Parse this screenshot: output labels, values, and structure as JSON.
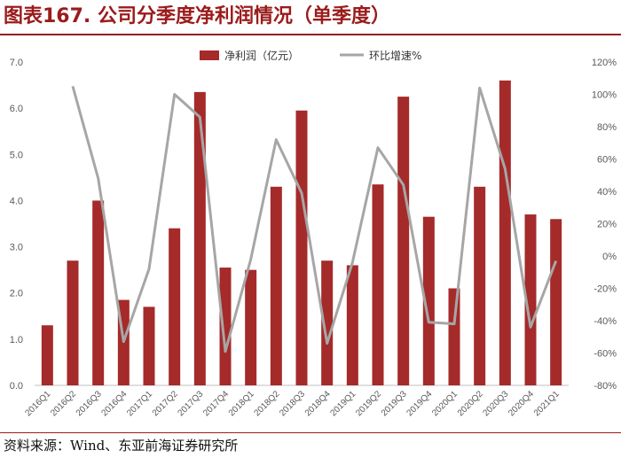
{
  "figure": {
    "title": "图表167. 公司分季度净利润情况（单季度）",
    "source": "资料来源：Wind、东亚前海证券研究所"
  },
  "colors": {
    "bar": "#a52a2a",
    "line": "#a6a6a6",
    "title": "#9b1b1b"
  },
  "chart_data": {
    "type": "bar",
    "categories": [
      "2016Q1",
      "2016Q2",
      "2016Q3",
      "2016Q4",
      "2017Q1",
      "2017Q2",
      "2017Q3",
      "2017Q4",
      "2018Q1",
      "2018Q2",
      "2018Q3",
      "2018Q4",
      "2019Q1",
      "2019Q2",
      "2019Q3",
      "2019Q4",
      "2020Q1",
      "2020Q2",
      "2020Q3",
      "2020Q4",
      "2021Q1"
    ],
    "series": [
      {
        "name": "净利润（亿元）",
        "type": "bar",
        "axis": "left",
        "values": [
          1.3,
          2.7,
          4.0,
          1.85,
          1.7,
          3.4,
          6.35,
          2.55,
          2.5,
          4.3,
          5.95,
          2.7,
          2.6,
          4.35,
          6.25,
          3.65,
          2.1,
          4.3,
          6.6,
          3.7,
          3.6
        ]
      },
      {
        "name": "环比增速%",
        "type": "line",
        "axis": "right",
        "values": [
          null,
          105,
          48,
          -53,
          -8,
          100,
          86,
          -59,
          -2,
          72,
          39,
          -54,
          -4,
          67,
          44,
          -41,
          -42,
          104,
          54,
          -44,
          -3
        ]
      }
    ],
    "y_left": {
      "min": 0,
      "max": 7,
      "ticks": [
        "0.0",
        "1.0",
        "2.0",
        "3.0",
        "4.0",
        "5.0",
        "6.0",
        "7.0"
      ]
    },
    "y_right": {
      "min": -80,
      "max": 120,
      "ticks": [
        "-80%",
        "-60%",
        "-40%",
        "-20%",
        "0%",
        "20%",
        "40%",
        "60%",
        "80%",
        "100%",
        "120%"
      ]
    },
    "legend": {
      "position": "top-right"
    },
    "grid": false
  }
}
